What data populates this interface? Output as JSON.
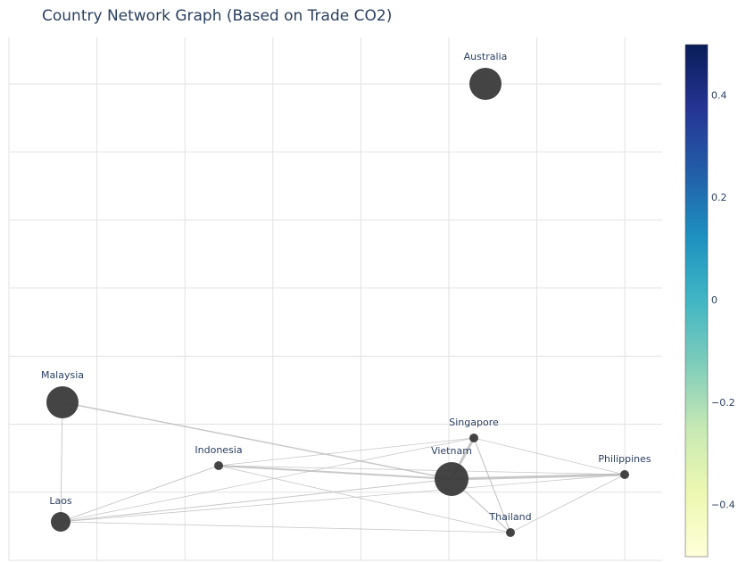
{
  "chart_data": {
    "type": "network",
    "title": "Country Network Graph (Based on Trade CO2)",
    "nodes": [
      "Australia",
      "Malaysia",
      "Indonesia",
      "Singapore",
      "Vietnam",
      "Philippines",
      "Laos",
      "Thailand"
    ],
    "node_color": "#3a3a3a",
    "colorscale": [
      "#ffffd9",
      "#edf8b1",
      "#c7e9b4",
      "#7fcdbb",
      "#41b6c4",
      "#1d91c0",
      "#225ea8",
      "#253494",
      "#081d58"
    ],
    "clim": [
      -0.5,
      0.5
    ],
    "cticks": [
      {
        "value": -0.4,
        "label": "−0.4"
      },
      {
        "value": -0.2,
        "label": "−0.2"
      },
      0,
      0.2,
      0.4
    ],
    "grid": true
  }
}
